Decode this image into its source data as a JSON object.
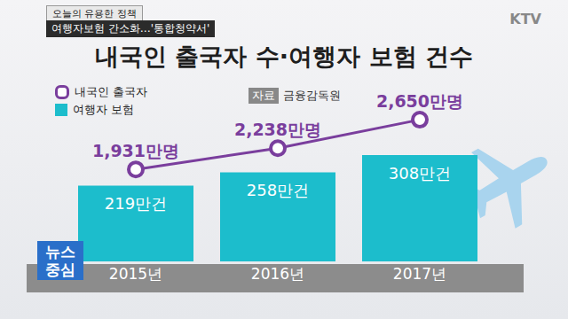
{
  "header": {
    "program_tag": "오늘의 유용한 정책",
    "headline": "여행자보험 간소화…'통합청약서'",
    "channel": "KTV",
    "logo": [
      "뉴스",
      "중심"
    ]
  },
  "chart_data": {
    "type": "bar",
    "title": "내국인 출국자 수·여행자 보험 건수",
    "source_label": "자료",
    "source": "금융감독원",
    "legend": "top-left",
    "data_labels": true,
    "tick_labels": "x",
    "grid": false,
    "categories": [
      "2015년",
      "2016년",
      "2017년"
    ],
    "ylim": [
      0,
      500
    ],
    "yticks": [
      0,
      500
    ],
    "y2lim": [
      600,
      3100
    ],
    "y2ticks": [
      600,
      3100
    ],
    "series": [
      {
        "name": "내국인 출국자",
        "type": "line",
        "color": "#7a3e9d",
        "marker": "circle",
        "axis": "y2",
        "values": [
          1931,
          2238,
          2650
        ],
        "value_labels": [
          "1,931만명",
          "2,238만명",
          "2,650만명"
        ]
      },
      {
        "name": "여행자 보험",
        "type": "bar",
        "color": "#1cbdcc",
        "values": [
          219,
          258,
          308
        ],
        "value_labels": [
          "219만건",
          "258만건",
          "308만건"
        ]
      }
    ]
  }
}
